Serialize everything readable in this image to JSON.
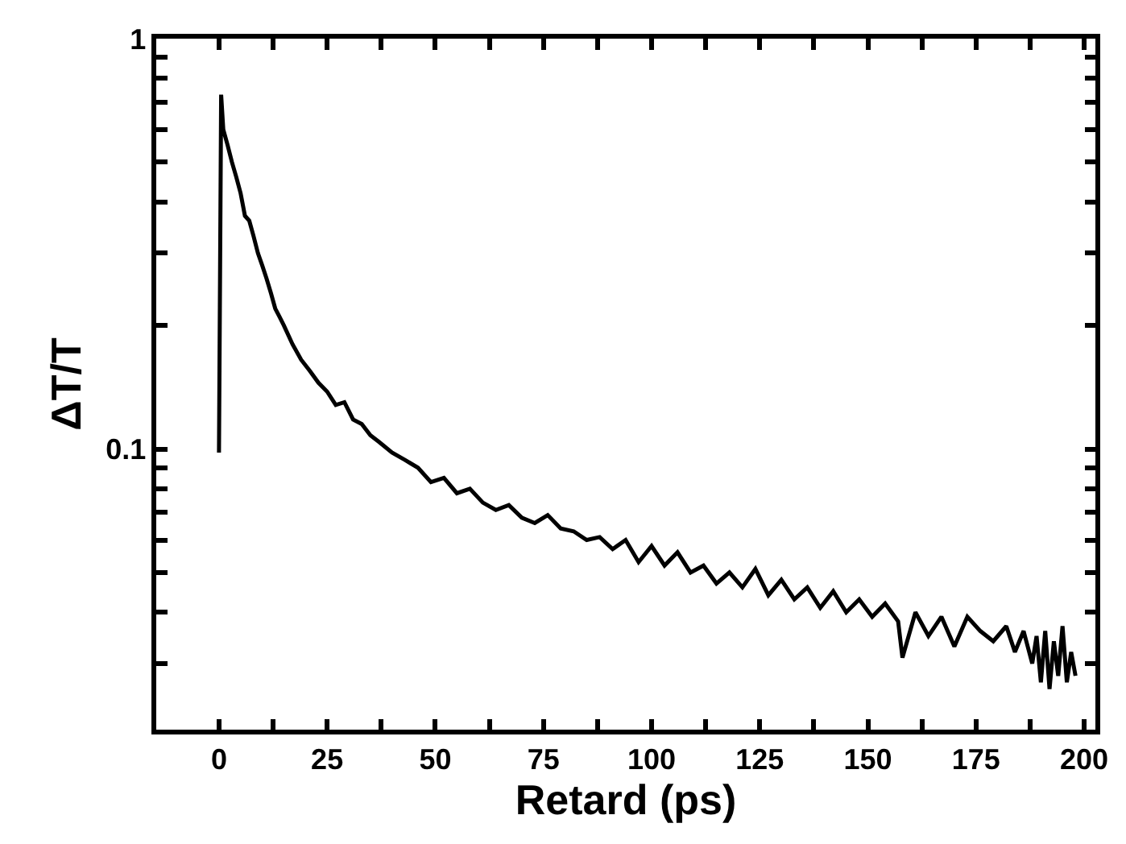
{
  "chart_data": {
    "type": "line",
    "xlabel": "Retard (ps)",
    "ylabel": "ΔT/T",
    "log": "y",
    "legend": false,
    "marker": "none",
    "line_style": "solid",
    "xlim": [
      -14.5,
      202.6
    ],
    "ylim": [
      0.0207,
      1
    ],
    "xticks": [
      0,
      {
        "value": 12.5,
        "label": null
      },
      25,
      {
        "value": 37.5,
        "label": null
      },
      50,
      {
        "value": 62.5,
        "label": null
      },
      75,
      {
        "value": 87.5,
        "label": null
      },
      100,
      {
        "value": 112.5,
        "label": null
      },
      125,
      {
        "value": 137.5,
        "label": null
      },
      150,
      {
        "value": 162.5,
        "label": null
      },
      175,
      {
        "value": 187.5,
        "label": null
      },
      200
    ],
    "yticks": [
      {
        "value": 0.03,
        "label": null
      },
      {
        "value": 0.04,
        "label": null
      },
      {
        "value": 0.05,
        "label": null
      },
      {
        "value": 0.06,
        "label": null
      },
      {
        "value": 0.07,
        "label": null
      },
      {
        "value": 0.08,
        "label": null
      },
      {
        "value": 0.09,
        "label": null
      },
      0.1,
      {
        "value": 0.2,
        "label": null
      },
      {
        "value": 0.3,
        "label": null
      },
      {
        "value": 0.4,
        "label": null
      },
      {
        "value": 0.5,
        "label": null
      },
      {
        "value": 0.6,
        "label": null
      },
      {
        "value": 0.7,
        "label": null
      },
      {
        "value": 0.8,
        "label": null
      },
      {
        "value": 0.9,
        "label": null
      },
      1
    ],
    "x": [
      0,
      0.5,
      1,
      2,
      3,
      4,
      5,
      6,
      7,
      8,
      9,
      10,
      11,
      12,
      13,
      14,
      15,
      17,
      19,
      21,
      23,
      25,
      27,
      29,
      31,
      33,
      35,
      37,
      40,
      43,
      46,
      49,
      52,
      55,
      58,
      61,
      64,
      67,
      70,
      73,
      76,
      79,
      82,
      85,
      88,
      91,
      94,
      97,
      100,
      103,
      106,
      109,
      112,
      115,
      118,
      121,
      124,
      127,
      130,
      133,
      136,
      139,
      142,
      145,
      148,
      151,
      154,
      157,
      158,
      161,
      164,
      167,
      170,
      173,
      176,
      179,
      182,
      184,
      186,
      188,
      189,
      190,
      191,
      192,
      193,
      194,
      195,
      196,
      197,
      198
    ],
    "series": [
      {
        "color": "#000000",
        "values": [
          0.098,
          0.73,
          0.6,
          0.55,
          0.5,
          0.46,
          0.42,
          0.37,
          0.36,
          0.33,
          0.3,
          0.28,
          0.26,
          0.24,
          0.22,
          0.21,
          0.2,
          0.18,
          0.165,
          0.155,
          0.145,
          0.138,
          0.128,
          0.13,
          0.118,
          0.115,
          0.108,
          0.104,
          0.098,
          0.094,
          0.09,
          0.083,
          0.085,
          0.078,
          0.08,
          0.074,
          0.071,
          0.073,
          0.068,
          0.066,
          0.069,
          0.064,
          0.063,
          0.06,
          0.061,
          0.057,
          0.06,
          0.053,
          0.058,
          0.052,
          0.056,
          0.05,
          0.052,
          0.047,
          0.05,
          0.046,
          0.051,
          0.044,
          0.048,
          0.043,
          0.046,
          0.041,
          0.045,
          0.04,
          0.043,
          0.039,
          0.042,
          0.038,
          0.031,
          0.04,
          0.035,
          0.039,
          0.033,
          0.039,
          0.036,
          0.034,
          0.037,
          0.032,
          0.036,
          0.03,
          0.035,
          0.027,
          0.036,
          0.026,
          0.034,
          0.028,
          0.037,
          0.027,
          0.032,
          0.028
        ]
      }
    ]
  }
}
